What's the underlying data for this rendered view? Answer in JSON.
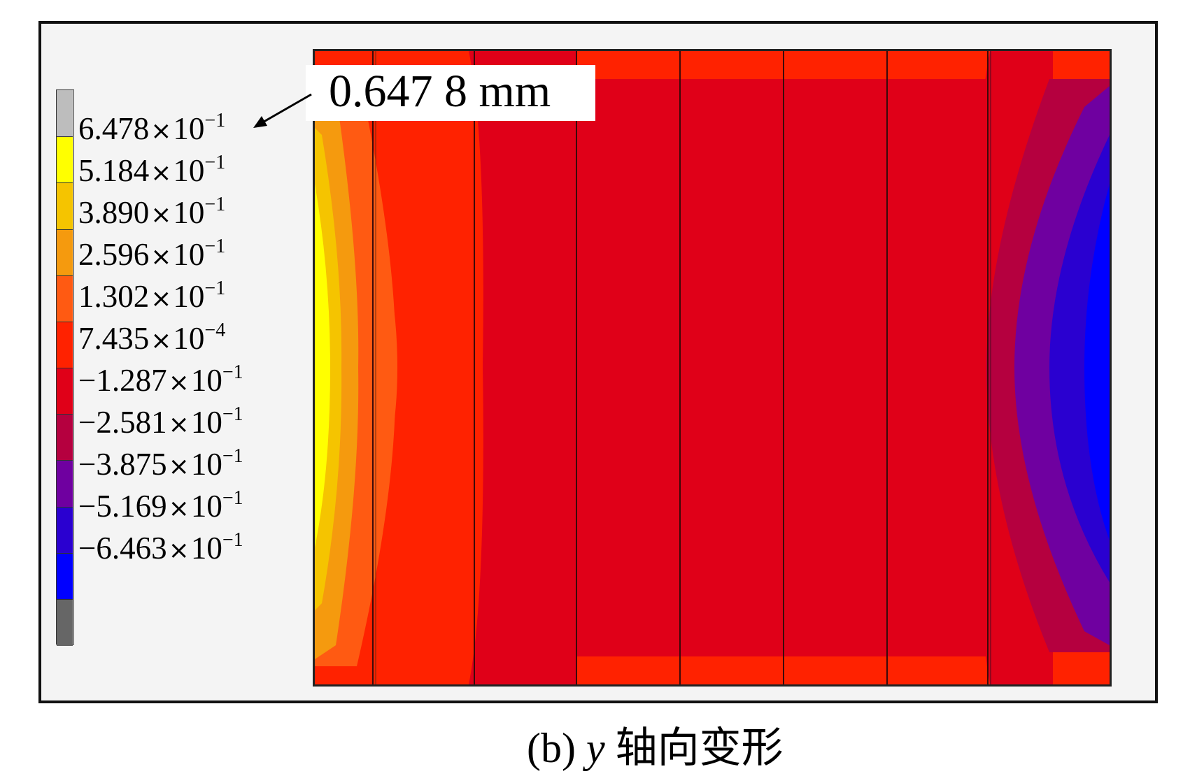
{
  "legend": {
    "colors": [
      "#bdbdbd",
      "#ffff00",
      "#f5c400",
      "#f59a0e",
      "#ff5a12",
      "#ff2200",
      "#e00018",
      "#b5003f",
      "#6f00a0",
      "#2a00d0",
      "#0000ff",
      "#666666"
    ],
    "entries": [
      {
        "mantissa": "6.478",
        "base": "10",
        "exp": "−1"
      },
      {
        "mantissa": "5.184",
        "base": "10",
        "exp": "−1"
      },
      {
        "mantissa": "3.890",
        "base": "10",
        "exp": "−1"
      },
      {
        "mantissa": "2.596",
        "base": "10",
        "exp": "−1"
      },
      {
        "mantissa": "1.302",
        "base": "10",
        "exp": "−1"
      },
      {
        "mantissa": "7.435",
        "base": "10",
        "exp": "−4"
      },
      {
        "mantissa": "−1.287",
        "base": "10",
        "exp": "−1"
      },
      {
        "mantissa": "−2.581",
        "base": "10",
        "exp": "−1"
      },
      {
        "mantissa": "−3.875",
        "base": "10",
        "exp": "−1"
      },
      {
        "mantissa": "−5.169",
        "base": "10",
        "exp": "−1"
      },
      {
        "mantissa": "−6.463",
        "base": "10",
        "exp": "−1"
      }
    ],
    "times_symbol": "×"
  },
  "callout": {
    "text": "0.647 8 mm"
  },
  "caption": {
    "prefix": "(b)",
    "variable": "y",
    "text": "轴向变形"
  },
  "plot": {
    "panel_count": 8,
    "colors": {
      "max_side": "#ffff00",
      "warm_1": "#f5c400",
      "warm_2": "#f59a0e",
      "warm_3": "#ff5a12",
      "panel_main": "#ff2200",
      "panel_dark": "#e00018",
      "cool_1": "#b5003f",
      "cool_2": "#6f00a0",
      "cool_3": "#2a00d0",
      "min_side": "#0000ff"
    }
  }
}
